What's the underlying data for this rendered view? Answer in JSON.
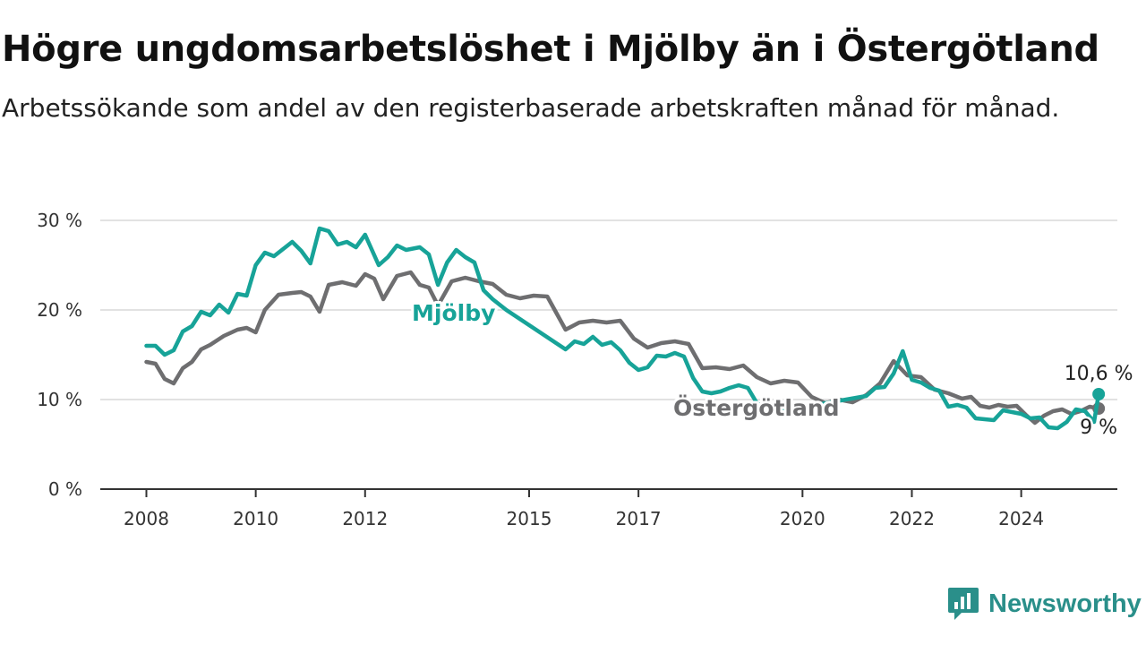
{
  "header": {
    "title": "Högre ungdomsarbetslöshet i Mjölby än i Östergötland",
    "subtitle": "Arbetssökande som andel av den registerbaserade arbetskraften månad för månad."
  },
  "logo": {
    "text": "Newsworthy",
    "icon": "newsworthy-chart-icon",
    "color": "#2a8f8a"
  },
  "chart_data": {
    "type": "line",
    "title": "Högre ungdomsarbetslöshet i Mjölby än i Östergötland",
    "subtitle": "Arbetssökande som andel av den registerbaserade arbetskraften månad för månad.",
    "xlabel": "",
    "ylabel": "",
    "x_ticks": [
      "2008",
      "2010",
      "2012",
      "2015",
      "2017",
      "2020",
      "2022",
      "2024"
    ],
    "y_ticks": [
      "0 %",
      "10 %",
      "20 %",
      "30 %"
    ],
    "ylim": [
      0,
      30
    ],
    "xlim": [
      "2008-01",
      "2025-06"
    ],
    "grid": true,
    "legend": "none",
    "series": [
      {
        "name": "Östergötland",
        "color": "#6e6e70",
        "end_label": "9 %",
        "points": [
          [
            "2008-01",
            14.2
          ],
          [
            "2008-03",
            14.0
          ],
          [
            "2008-05",
            12.3
          ],
          [
            "2008-07",
            11.8
          ],
          [
            "2008-09",
            13.5
          ],
          [
            "2008-11",
            14.2
          ],
          [
            "2009-01",
            15.6
          ],
          [
            "2009-03",
            16.1
          ],
          [
            "2009-06",
            17.1
          ],
          [
            "2009-09",
            17.8
          ],
          [
            "2009-11",
            18.0
          ],
          [
            "2010-01",
            17.5
          ],
          [
            "2010-03",
            20.0
          ],
          [
            "2010-06",
            21.7
          ],
          [
            "2010-09",
            21.9
          ],
          [
            "2010-11",
            22.0
          ],
          [
            "2011-01",
            21.5
          ],
          [
            "2011-03",
            19.8
          ],
          [
            "2011-05",
            22.8
          ],
          [
            "2011-08",
            23.1
          ],
          [
            "2011-11",
            22.7
          ],
          [
            "2012-01",
            24.0
          ],
          [
            "2012-03",
            23.5
          ],
          [
            "2012-05",
            21.2
          ],
          [
            "2012-08",
            23.8
          ],
          [
            "2012-11",
            24.2
          ],
          [
            "2013-01",
            22.8
          ],
          [
            "2013-03",
            22.5
          ],
          [
            "2013-05",
            20.5
          ],
          [
            "2013-08",
            23.2
          ],
          [
            "2013-11",
            23.6
          ],
          [
            "2014-02",
            23.2
          ],
          [
            "2014-05",
            22.9
          ],
          [
            "2014-08",
            21.7
          ],
          [
            "2014-11",
            21.3
          ],
          [
            "2015-02",
            21.6
          ],
          [
            "2015-05",
            21.5
          ],
          [
            "2015-09",
            17.8
          ],
          [
            "2015-12",
            18.6
          ],
          [
            "2016-03",
            18.8
          ],
          [
            "2016-06",
            18.6
          ],
          [
            "2016-09",
            18.8
          ],
          [
            "2016-12",
            16.8
          ],
          [
            "2017-03",
            15.8
          ],
          [
            "2017-06",
            16.3
          ],
          [
            "2017-09",
            16.5
          ],
          [
            "2017-12",
            16.2
          ],
          [
            "2018-03",
            13.5
          ],
          [
            "2018-06",
            13.6
          ],
          [
            "2018-09",
            13.4
          ],
          [
            "2018-12",
            13.8
          ],
          [
            "2019-03",
            12.5
          ],
          [
            "2019-06",
            11.8
          ],
          [
            "2019-09",
            12.1
          ],
          [
            "2019-12",
            11.9
          ],
          [
            "2020-03",
            10.3
          ],
          [
            "2020-06",
            9.6
          ],
          [
            "2020-09",
            10.0
          ],
          [
            "2020-12",
            9.7
          ],
          [
            "2021-03",
            10.5
          ],
          [
            "2021-06",
            11.8
          ],
          [
            "2021-09",
            14.3
          ],
          [
            "2021-12",
            12.7
          ],
          [
            "2022-03",
            12.5
          ],
          [
            "2022-06",
            11.1
          ],
          [
            "2022-09",
            10.7
          ],
          [
            "2022-12",
            10.1
          ],
          [
            "2023-02",
            10.3
          ],
          [
            "2023-04",
            9.3
          ],
          [
            "2023-06",
            9.1
          ],
          [
            "2023-08",
            9.4
          ],
          [
            "2023-10",
            9.2
          ],
          [
            "2023-12",
            9.3
          ],
          [
            "2024-02",
            8.3
          ],
          [
            "2024-04",
            7.4
          ],
          [
            "2024-06",
            8.2
          ],
          [
            "2024-08",
            8.7
          ],
          [
            "2024-10",
            8.9
          ],
          [
            "2024-12",
            8.4
          ],
          [
            "2025-02",
            8.7
          ],
          [
            "2025-04",
            9.2
          ],
          [
            "2025-06",
            9.0
          ]
        ]
      },
      {
        "name": "Mjölby",
        "color": "#17a398",
        "end_label": "10,6 %",
        "points": [
          [
            "2008-01",
            16.0
          ],
          [
            "2008-03",
            16.0
          ],
          [
            "2008-05",
            15.0
          ],
          [
            "2008-07",
            15.5
          ],
          [
            "2008-09",
            17.6
          ],
          [
            "2008-11",
            18.2
          ],
          [
            "2009-01",
            19.8
          ],
          [
            "2009-03",
            19.4
          ],
          [
            "2009-05",
            20.6
          ],
          [
            "2009-07",
            19.7
          ],
          [
            "2009-09",
            21.8
          ],
          [
            "2009-11",
            21.6
          ],
          [
            "2010-01",
            25.0
          ],
          [
            "2010-03",
            26.4
          ],
          [
            "2010-05",
            26.0
          ],
          [
            "2010-07",
            26.8
          ],
          [
            "2010-09",
            27.6
          ],
          [
            "2010-11",
            26.6
          ],
          [
            "2011-01",
            25.2
          ],
          [
            "2011-03",
            29.1
          ],
          [
            "2011-05",
            28.8
          ],
          [
            "2011-07",
            27.3
          ],
          [
            "2011-09",
            27.6
          ],
          [
            "2011-11",
            27.0
          ],
          [
            "2012-01",
            28.4
          ],
          [
            "2012-04",
            25.0
          ],
          [
            "2012-06",
            25.9
          ],
          [
            "2012-08",
            27.2
          ],
          [
            "2012-10",
            26.7
          ],
          [
            "2013-01",
            27.0
          ],
          [
            "2013-03",
            26.2
          ],
          [
            "2013-05",
            22.8
          ],
          [
            "2013-07",
            25.3
          ],
          [
            "2013-09",
            26.7
          ],
          [
            "2013-11",
            25.9
          ],
          [
            "2014-01",
            25.3
          ],
          [
            "2014-03",
            22.2
          ],
          [
            "2014-05",
            21.2
          ],
          [
            "2014-08",
            20.0
          ],
          [
            "2015-09",
            15.6
          ],
          [
            "2015-11",
            16.5
          ],
          [
            "2016-01",
            16.2
          ],
          [
            "2016-03",
            17.0
          ],
          [
            "2016-05",
            16.1
          ],
          [
            "2016-07",
            16.4
          ],
          [
            "2016-09",
            15.5
          ],
          [
            "2016-11",
            14.1
          ],
          [
            "2017-01",
            13.3
          ],
          [
            "2017-03",
            13.6
          ],
          [
            "2017-05",
            14.9
          ],
          [
            "2017-07",
            14.8
          ],
          [
            "2017-09",
            15.2
          ],
          [
            "2017-11",
            14.8
          ],
          [
            "2018-01",
            12.4
          ],
          [
            "2018-03",
            10.9
          ],
          [
            "2018-05",
            10.7
          ],
          [
            "2018-07",
            10.9
          ],
          [
            "2018-09",
            11.3
          ],
          [
            "2018-11",
            11.6
          ],
          [
            "2019-01",
            11.3
          ],
          [
            "2019-03",
            9.6
          ],
          [
            "2019-05",
            8.9
          ],
          [
            "2019-07",
            8.6
          ],
          [
            "2021-03",
            10.4
          ],
          [
            "2021-05",
            11.3
          ],
          [
            "2021-07",
            11.4
          ],
          [
            "2021-09",
            12.9
          ],
          [
            "2021-11",
            15.4
          ],
          [
            "2022-01",
            12.2
          ],
          [
            "2022-03",
            11.9
          ],
          [
            "2022-05",
            11.3
          ],
          [
            "2022-07",
            11.0
          ],
          [
            "2022-09",
            9.2
          ],
          [
            "2022-11",
            9.4
          ],
          [
            "2023-01",
            9.1
          ],
          [
            "2023-03",
            7.9
          ],
          [
            "2023-05",
            7.8
          ],
          [
            "2023-07",
            7.7
          ],
          [
            "2023-09",
            8.8
          ],
          [
            "2023-11",
            8.6
          ],
          [
            "2024-01",
            8.4
          ],
          [
            "2024-03",
            7.9
          ],
          [
            "2024-05",
            8.0
          ],
          [
            "2024-07",
            6.9
          ],
          [
            "2024-09",
            6.8
          ],
          [
            "2024-11",
            7.5
          ],
          [
            "2025-01",
            8.9
          ],
          [
            "2025-03",
            8.7
          ],
          [
            "2025-05",
            7.5
          ],
          [
            "2025-06",
            10.6
          ]
        ]
      }
    ]
  }
}
